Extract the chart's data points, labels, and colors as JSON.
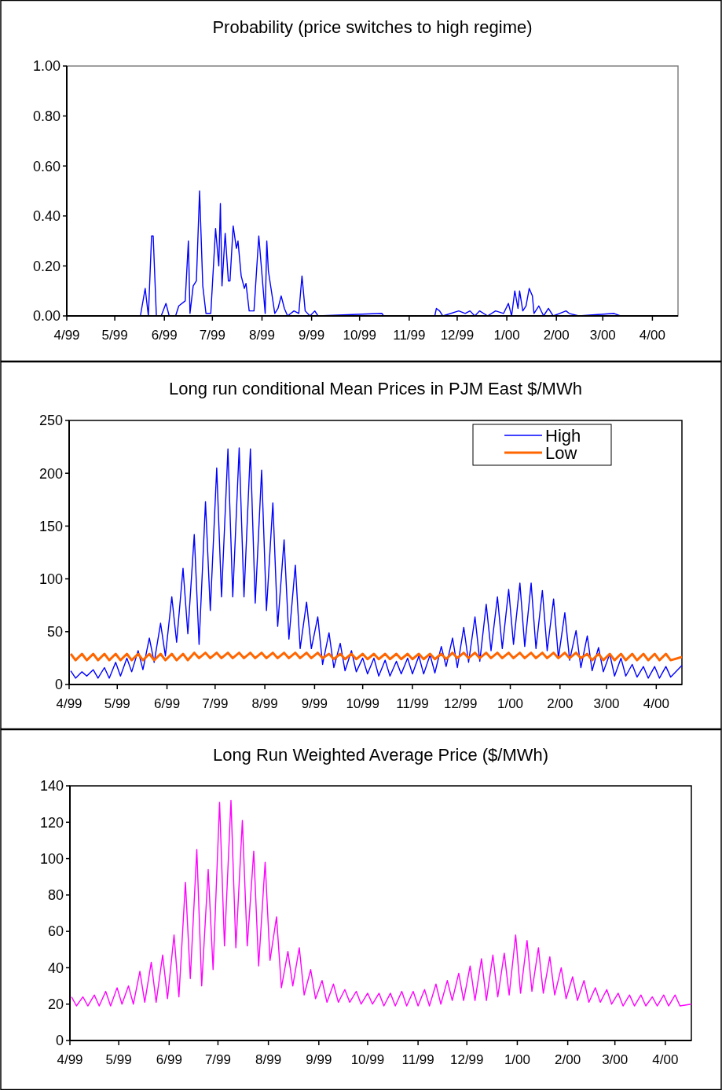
{
  "chart_data": [
    {
      "type": "line",
      "title": "Probability (price switches to high regime)",
      "xlim": [
        "1999-04-01",
        "2000-04-17"
      ],
      "xticks": [
        {
          "value": "1999-04",
          "label": "4/99"
        },
        {
          "value": "1999-05",
          "label": "5/99"
        },
        {
          "value": "1999-06",
          "label": "6/99"
        },
        {
          "value": "1999-07",
          "label": "7/99"
        },
        {
          "value": "1999-08",
          "label": "8/99"
        },
        {
          "value": "1999-09",
          "label": "9/99"
        },
        {
          "value": "1999-10",
          "label": "10/99"
        },
        {
          "value": "1999-11",
          "label": "11/99"
        },
        {
          "value": "1999-12",
          "label": "12/99"
        },
        {
          "value": "2000-01",
          "label": "1/00"
        },
        {
          "value": "2000-02",
          "label": "2/00"
        },
        {
          "value": "2000-03",
          "label": "3/00"
        },
        {
          "value": "2000-04",
          "label": "4/00"
        }
      ],
      "ylim": [
        0,
        1
      ],
      "yticks": [
        {
          "value": 0,
          "label": "0.00"
        },
        {
          "value": 0.2,
          "label": "0.20"
        },
        {
          "value": 0.4,
          "label": "0.40"
        },
        {
          "value": 0.6,
          "label": "0.60"
        },
        {
          "value": 0.8,
          "label": "0.80"
        },
        {
          "value": 1,
          "label": "1.00"
        }
      ],
      "grid": false,
      "legend": false,
      "marker": "none",
      "line_style": "solid",
      "series": [
        {
          "color": "#0000ff",
          "x": [
            "1999-04-01",
            "1999-05-17",
            "1999-05-20",
            "1999-05-22",
            "1999-05-24",
            "1999-05-25",
            "1999-05-27",
            "1999-05-30",
            "1999-06-02",
            "1999-06-04",
            "1999-06-08",
            "1999-06-10",
            "1999-06-14",
            "1999-06-16",
            "1999-06-17",
            "1999-06-19",
            "1999-06-21",
            "1999-06-23",
            "1999-06-25",
            "1999-06-27",
            "1999-06-30",
            "1999-07-03",
            "1999-07-05",
            "1999-07-06",
            "1999-07-07",
            "1999-07-09",
            "1999-07-11",
            "1999-07-12",
            "1999-07-14",
            "1999-07-16",
            "1999-07-17",
            "1999-07-19",
            "1999-07-21",
            "1999-07-22",
            "1999-07-24",
            "1999-07-27",
            "1999-07-30",
            "1999-08-03",
            "1999-08-04",
            "1999-08-05",
            "1999-08-09",
            "1999-08-11",
            "1999-08-13",
            "1999-08-15",
            "1999-08-17",
            "1999-08-21",
            "1999-08-24",
            "1999-08-26",
            "1999-08-28",
            "1999-08-31",
            "1999-09-03",
            "1999-09-05",
            "1999-10-15",
            "1999-10-16",
            "1999-11-17",
            "1999-11-18",
            "1999-11-20",
            "1999-11-22",
            "1999-12-02",
            "1999-12-06",
            "1999-12-09",
            "1999-12-12",
            "1999-12-15",
            "1999-12-20",
            "1999-12-25",
            "1999-12-30",
            "2000-01-02",
            "2000-01-04",
            "2000-01-06",
            "2000-01-08",
            "2000-01-09",
            "2000-01-11",
            "2000-01-13",
            "2000-01-15",
            "2000-01-17",
            "2000-01-18",
            "2000-01-21",
            "2000-01-24",
            "2000-01-27",
            "2000-01-30",
            "2000-02-03",
            "2000-02-07",
            "2000-02-09",
            "2000-02-15",
            "2000-03-08",
            "2000-03-12",
            "2000-04-17"
          ],
          "values": [
            0,
            0,
            0.11,
            0,
            0.32,
            0.32,
            0,
            0,
            0.05,
            0,
            0,
            0.04,
            0.06,
            0.3,
            0.01,
            0.12,
            0.14,
            0.5,
            0.12,
            0.01,
            0.01,
            0.35,
            0.2,
            0.45,
            0.12,
            0.33,
            0.14,
            0.14,
            0.36,
            0.27,
            0.3,
            0.16,
            0.11,
            0.13,
            0.02,
            0.02,
            0.32,
            0.01,
            0.3,
            0.18,
            0.01,
            0.03,
            0.08,
            0.03,
            0,
            0.02,
            0.01,
            0.16,
            0.02,
            0,
            0.02,
            0,
            0.01,
            0,
            0,
            0.03,
            0.02,
            0,
            0.02,
            0.01,
            0.02,
            0,
            0.02,
            0,
            0.02,
            0.01,
            0.05,
            0,
            0.1,
            0.03,
            0.1,
            0.02,
            0.04,
            0.11,
            0.08,
            0.01,
            0.04,
            0,
            0.03,
            0,
            0.01,
            0.02,
            0.01,
            0,
            0.01,
            0,
            0
          ]
        }
      ]
    },
    {
      "type": "line",
      "title": "Long run conditional Mean Prices in PJM East $/MWh",
      "x": [
        "1999-04-02",
        "1999-04-05",
        "1999-04-09",
        "1999-04-12",
        "1999-04-16",
        "1999-04-19",
        "1999-04-23",
        "1999-04-26",
        "1999-04-30",
        "1999-05-03",
        "1999-05-07",
        "1999-05-10",
        "1999-05-14",
        "1999-05-17",
        "1999-05-21",
        "1999-05-24",
        "1999-05-28",
        "1999-05-31",
        "1999-06-04",
        "1999-06-07",
        "1999-06-11",
        "1999-06-14",
        "1999-06-18",
        "1999-06-21",
        "1999-06-25",
        "1999-06-28",
        "1999-07-02",
        "1999-07-05",
        "1999-07-09",
        "1999-07-12",
        "1999-07-16",
        "1999-07-19",
        "1999-07-23",
        "1999-07-26",
        "1999-07-30",
        "1999-08-02",
        "1999-08-06",
        "1999-08-09",
        "1999-08-13",
        "1999-08-16",
        "1999-08-20",
        "1999-08-23",
        "1999-08-27",
        "1999-08-30",
        "1999-09-03",
        "1999-09-06",
        "1999-09-10",
        "1999-09-13",
        "1999-09-17",
        "1999-09-20",
        "1999-09-24",
        "1999-09-27",
        "1999-10-01",
        "1999-10-04",
        "1999-10-08",
        "1999-10-11",
        "1999-10-15",
        "1999-10-18",
        "1999-10-22",
        "1999-10-25",
        "1999-10-29",
        "1999-11-01",
        "1999-11-05",
        "1999-11-08",
        "1999-11-12",
        "1999-11-15",
        "1999-11-19",
        "1999-11-22",
        "1999-11-26",
        "1999-11-29",
        "1999-12-03",
        "1999-12-06",
        "1999-12-10",
        "1999-12-13",
        "1999-12-17",
        "1999-12-20",
        "1999-12-24",
        "1999-12-27",
        "1999-12-31",
        "2000-01-03",
        "2000-01-07",
        "2000-01-10",
        "2000-01-14",
        "2000-01-17",
        "2000-01-21",
        "2000-01-24",
        "2000-01-28",
        "2000-01-31",
        "2000-02-04",
        "2000-02-07",
        "2000-02-11",
        "2000-02-14",
        "2000-02-18",
        "2000-02-21",
        "2000-02-25",
        "2000-02-28",
        "2000-03-03",
        "2000-03-06",
        "2000-03-10",
        "2000-03-13",
        "2000-03-17",
        "2000-03-20",
        "2000-03-24",
        "2000-03-27",
        "2000-03-31",
        "2000-04-03",
        "2000-04-07",
        "2000-04-10",
        "2000-04-17"
      ],
      "xlim": [
        "1999-04-01",
        "2000-04-17"
      ],
      "xticks": [
        {
          "value": "1999-04",
          "label": "4/99"
        },
        {
          "value": "1999-05",
          "label": "5/99"
        },
        {
          "value": "1999-06",
          "label": "6/99"
        },
        {
          "value": "1999-07",
          "label": "7/99"
        },
        {
          "value": "1999-08",
          "label": "8/99"
        },
        {
          "value": "1999-09",
          "label": "9/99"
        },
        {
          "value": "1999-10",
          "label": "10/99"
        },
        {
          "value": "1999-11",
          "label": "11/99"
        },
        {
          "value": "1999-12",
          "label": "12/99"
        },
        {
          "value": "2000-01",
          "label": "1/00"
        },
        {
          "value": "2000-02",
          "label": "2/00"
        },
        {
          "value": "2000-03",
          "label": "3/00"
        },
        {
          "value": "2000-04",
          "label": "4/00"
        }
      ],
      "ylim": [
        0,
        250
      ],
      "yticks": [
        0,
        50,
        100,
        150,
        200,
        250
      ],
      "grid": false,
      "legend": "top right",
      "marker": "none",
      "line_style": "solid",
      "series": [
        {
          "name": "High",
          "color": "#0000ff",
          "values": [
            13,
            6,
            12,
            8,
            14,
            6,
            16,
            6,
            21,
            8,
            25,
            12,
            32,
            14,
            44,
            21,
            58,
            27,
            83,
            40,
            110,
            48,
            142,
            38,
            173,
            70,
            205,
            83,
            223,
            83,
            224,
            83,
            223,
            77,
            203,
            70,
            172,
            55,
            137,
            43,
            113,
            34,
            78,
            34,
            64,
            19,
            49,
            16,
            39,
            13,
            32,
            12,
            25,
            10,
            25,
            8,
            23,
            8,
            22,
            10,
            25,
            10,
            27,
            10,
            28,
            11,
            36,
            17,
            44,
            16,
            54,
            21,
            64,
            22,
            76,
            32,
            83,
            34,
            90,
            38,
            96,
            36,
            96,
            34,
            89,
            32,
            81,
            25,
            68,
            23,
            51,
            16,
            46,
            13,
            35,
            12,
            29,
            8,
            25,
            8,
            19,
            7,
            17,
            6,
            17,
            6,
            17,
            7,
            18
          ]
        },
        {
          "name": "Low",
          "color": "#ff6600",
          "values": [
            29,
            23,
            29,
            23,
            29,
            23,
            29,
            23,
            29,
            23,
            29,
            23,
            29,
            23,
            29,
            23,
            29,
            23,
            29,
            23,
            29,
            23,
            30,
            25,
            30,
            25,
            30,
            25,
            30,
            25,
            30,
            25,
            30,
            25,
            30,
            25,
            30,
            25,
            30,
            25,
            30,
            25,
            30,
            25,
            30,
            25,
            29,
            24,
            29,
            24,
            29,
            24,
            29,
            24,
            29,
            24,
            29,
            24,
            29,
            24,
            29,
            24,
            29,
            24,
            29,
            24,
            29,
            24,
            30,
            25,
            30,
            25,
            30,
            25,
            30,
            25,
            30,
            25,
            30,
            25,
            30,
            25,
            30,
            25,
            30,
            25,
            30,
            25,
            30,
            25,
            30,
            25,
            29,
            23,
            29,
            23,
            29,
            23,
            29,
            23,
            29,
            23,
            29,
            23,
            29,
            23,
            29,
            23,
            26
          ]
        }
      ]
    },
    {
      "type": "line",
      "title": "Long Run Weighted Average Price ($/MWh)",
      "x": [
        "1999-04-02",
        "1999-04-05",
        "1999-04-09",
        "1999-04-12",
        "1999-04-16",
        "1999-04-19",
        "1999-04-23",
        "1999-04-26",
        "1999-04-30",
        "1999-05-03",
        "1999-05-07",
        "1999-05-10",
        "1999-05-14",
        "1999-05-17",
        "1999-05-21",
        "1999-05-24",
        "1999-05-28",
        "1999-05-31",
        "1999-06-04",
        "1999-06-07",
        "1999-06-11",
        "1999-06-14",
        "1999-06-18",
        "1999-06-21",
        "1999-06-25",
        "1999-06-28",
        "1999-07-02",
        "1999-07-05",
        "1999-07-09",
        "1999-07-12",
        "1999-07-16",
        "1999-07-19",
        "1999-07-23",
        "1999-07-26",
        "1999-07-30",
        "1999-08-02",
        "1999-08-06",
        "1999-08-09",
        "1999-08-13",
        "1999-08-16",
        "1999-08-20",
        "1999-08-23",
        "1999-08-27",
        "1999-08-30",
        "1999-09-03",
        "1999-09-06",
        "1999-09-10",
        "1999-09-13",
        "1999-09-17",
        "1999-09-20",
        "1999-09-24",
        "1999-09-27",
        "1999-10-01",
        "1999-10-04",
        "1999-10-08",
        "1999-10-11",
        "1999-10-15",
        "1999-10-18",
        "1999-10-22",
        "1999-10-25",
        "1999-10-29",
        "1999-11-01",
        "1999-11-05",
        "1999-11-08",
        "1999-11-12",
        "1999-11-15",
        "1999-11-19",
        "1999-11-22",
        "1999-11-26",
        "1999-11-29",
        "1999-12-03",
        "1999-12-06",
        "1999-12-10",
        "1999-12-13",
        "1999-12-17",
        "1999-12-20",
        "1999-12-24",
        "1999-12-27",
        "1999-12-31",
        "2000-01-03",
        "2000-01-07",
        "2000-01-10",
        "2000-01-14",
        "2000-01-17",
        "2000-01-21",
        "2000-01-24",
        "2000-01-28",
        "2000-01-31",
        "2000-02-04",
        "2000-02-07",
        "2000-02-11",
        "2000-02-14",
        "2000-02-18",
        "2000-02-21",
        "2000-02-25",
        "2000-02-28",
        "2000-03-03",
        "2000-03-06",
        "2000-03-10",
        "2000-03-13",
        "2000-03-17",
        "2000-03-20",
        "2000-03-24",
        "2000-03-27",
        "2000-03-31",
        "2000-04-03",
        "2000-04-07",
        "2000-04-10",
        "2000-04-17"
      ],
      "xlim": [
        "1999-04-01",
        "2000-04-17"
      ],
      "xticks": [
        {
          "value": "1999-04",
          "label": "4/99"
        },
        {
          "value": "1999-05",
          "label": "5/99"
        },
        {
          "value": "1999-06",
          "label": "6/99"
        },
        {
          "value": "1999-07",
          "label": "7/99"
        },
        {
          "value": "1999-08",
          "label": "8/99"
        },
        {
          "value": "1999-09",
          "label": "9/99"
        },
        {
          "value": "1999-10",
          "label": "10/99"
        },
        {
          "value": "1999-11",
          "label": "11/99"
        },
        {
          "value": "1999-12",
          "label": "12/99"
        },
        {
          "value": "2000-01",
          "label": "1/00"
        },
        {
          "value": "2000-02",
          "label": "2/00"
        },
        {
          "value": "2000-03",
          "label": "3/00"
        },
        {
          "value": "2000-04",
          "label": "4/00"
        }
      ],
      "ylim": [
        0,
        140
      ],
      "yticks": [
        0,
        20,
        40,
        60,
        80,
        100,
        120,
        140
      ],
      "grid": false,
      "legend": false,
      "marker": "none",
      "line_style": "solid",
      "series": [
        {
          "color": "#ff00ff",
          "values": [
            24,
            19,
            24,
            19,
            25,
            19,
            27,
            19,
            29,
            20,
            30,
            20,
            38,
            21,
            43,
            21,
            47,
            23,
            58,
            24,
            87,
            34,
            105,
            30,
            94,
            39,
            131,
            52,
            132,
            51,
            121,
            52,
            104,
            41,
            98,
            44,
            68,
            29,
            49,
            30,
            51,
            25,
            39,
            23,
            33,
            21,
            31,
            21,
            28,
            21,
            27,
            20,
            26,
            20,
            26,
            19,
            26,
            19,
            27,
            19,
            27,
            19,
            28,
            19,
            31,
            20,
            33,
            22,
            37,
            22,
            41,
            22,
            45,
            22,
            47,
            24,
            48,
            25,
            58,
            26,
            55,
            27,
            51,
            26,
            46,
            25,
            40,
            23,
            35,
            22,
            33,
            21,
            29,
            21,
            28,
            20,
            26,
            19,
            25,
            19,
            25,
            19,
            24,
            19,
            25,
            19,
            25,
            19,
            20
          ]
        }
      ]
    }
  ]
}
